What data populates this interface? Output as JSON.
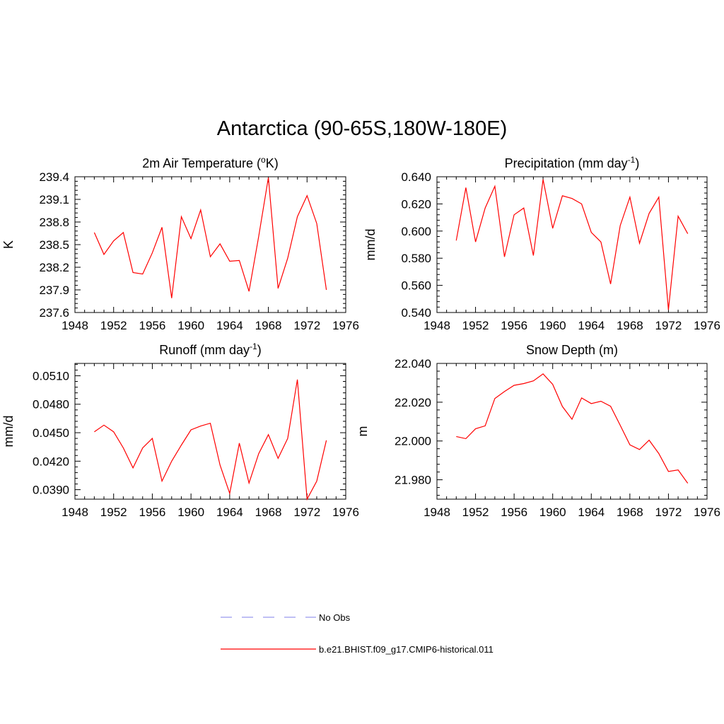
{
  "title": "Antarctica (90-65S,180W-180E)",
  "chart_data": [
    {
      "type": "line",
      "title": "2m Air Temperature (",
      "title_sup": "o",
      "title_end": "K)",
      "ylabel": "K",
      "xlim": [
        1948,
        1976
      ],
      "ylim": [
        237.6,
        239.4
      ],
      "yticks": [
        "237.6",
        "237.9",
        "238.2",
        "238.5",
        "238.8",
        "239.1",
        "239.4"
      ],
      "xticks": [
        "1948",
        "1952",
        "1956",
        "1960",
        "1964",
        "1968",
        "1972",
        "1976"
      ],
      "series": [
        {
          "name": "b.e21.BHIST.f09_g17.CMIP6-historical.011",
          "color": "#ff0000",
          "x": [
            1950,
            1951,
            1952,
            1953,
            1954,
            1955,
            1956,
            1957,
            1958,
            1959,
            1960,
            1961,
            1962,
            1963,
            1964,
            1965,
            1966,
            1967,
            1968,
            1969,
            1970,
            1971,
            1972,
            1973,
            1974
          ],
          "y": [
            238.66,
            238.37,
            238.55,
            238.66,
            238.13,
            238.11,
            238.39,
            238.73,
            237.79,
            238.87,
            238.58,
            238.96,
            238.34,
            238.51,
            238.28,
            238.29,
            237.88,
            238.61,
            239.39,
            237.92,
            238.32,
            238.87,
            239.15,
            238.78,
            237.9
          ]
        }
      ]
    },
    {
      "type": "line",
      "title": "Precipitation (mm day",
      "title_sup": "-1",
      "title_end": ")",
      "ylabel": "mm/d",
      "xlim": [
        1948,
        1976
      ],
      "ylim": [
        0.54,
        0.64
      ],
      "yticks": [
        "0.540",
        "0.560",
        "0.580",
        "0.600",
        "0.620",
        "0.640"
      ],
      "xticks": [
        "1948",
        "1952",
        "1956",
        "1960",
        "1964",
        "1968",
        "1972",
        "1976"
      ],
      "series": [
        {
          "name": "b.e21.BHIST.f09_g17.CMIP6-historical.011",
          "color": "#ff0000",
          "x": [
            1950,
            1951,
            1952,
            1953,
            1954,
            1955,
            1956,
            1957,
            1958,
            1959,
            1960,
            1961,
            1962,
            1963,
            1964,
            1965,
            1966,
            1967,
            1968,
            1969,
            1970,
            1971,
            1972,
            1973,
            1974
          ],
          "y": [
            0.593,
            0.632,
            0.592,
            0.617,
            0.633,
            0.581,
            0.612,
            0.617,
            0.582,
            0.638,
            0.602,
            0.626,
            0.624,
            0.62,
            0.599,
            0.592,
            0.561,
            0.604,
            0.625,
            0.591,
            0.613,
            0.625,
            0.542,
            0.611,
            0.598
          ]
        }
      ]
    },
    {
      "type": "line",
      "title": "Runoff (mm day",
      "title_sup": "-1",
      "title_end": ")",
      "ylabel": "mm/d",
      "xlim": [
        1948,
        1976
      ],
      "ylim": [
        0.038,
        0.0523
      ],
      "yticks": [
        "0.0390",
        "0.0420",
        "0.0450",
        "0.0480",
        "0.0510"
      ],
      "xticks": [
        "1948",
        "1952",
        "1956",
        "1960",
        "1964",
        "1968",
        "1972",
        "1976"
      ],
      "series": [
        {
          "name": "b.e21.BHIST.f09_g17.CMIP6-historical.011",
          "color": "#ff0000",
          "x": [
            1950,
            1951,
            1952,
            1953,
            1954,
            1955,
            1956,
            1957,
            1958,
            1959,
            1960,
            1961,
            1962,
            1963,
            1964,
            1965,
            1966,
            1967,
            1968,
            1969,
            1970,
            1971,
            1972,
            1973,
            1974
          ],
          "y": [
            0.0451,
            0.0458,
            0.0451,
            0.0434,
            0.0413,
            0.0434,
            0.0444,
            0.0399,
            0.042,
            0.0437,
            0.0453,
            0.0457,
            0.046,
            0.0416,
            0.0386,
            0.0439,
            0.0397,
            0.0428,
            0.0448,
            0.0423,
            0.0444,
            0.0506,
            0.038,
            0.0399,
            0.0442
          ]
        }
      ]
    },
    {
      "type": "line",
      "title": "Snow Depth (m)",
      "title_sup": "",
      "title_end": "",
      "ylabel": "m",
      "xlim": [
        1948,
        1976
      ],
      "ylim": [
        21.97,
        22.04
      ],
      "yticks": [
        "21.980",
        "22.000",
        "22.020",
        "22.040"
      ],
      "xticks": [
        "1948",
        "1952",
        "1956",
        "1960",
        "1964",
        "1968",
        "1972",
        "1976"
      ],
      "series": [
        {
          "name": "b.e21.BHIST.f09_g17.CMIP6-historical.011",
          "color": "#ff0000",
          "x": [
            1950,
            1951,
            1952,
            1953,
            1954,
            1955,
            1956,
            1957,
            1958,
            1959,
            1960,
            1961,
            1962,
            1963,
            1964,
            1965,
            1966,
            1967,
            1968,
            1969,
            1970,
            1971,
            1972,
            1973,
            1974
          ],
          "y": [
            22.0023,
            22.0012,
            22.0063,
            22.0078,
            22.0219,
            22.0255,
            22.0287,
            22.0296,
            22.031,
            22.0346,
            22.0292,
            22.0178,
            22.0112,
            22.0222,
            22.0193,
            22.0205,
            22.0179,
            22.0081,
            21.998,
            21.9956,
            22.0004,
            21.9935,
            21.9843,
            21.9851,
            21.9782
          ]
        }
      ]
    }
  ],
  "legend": {
    "entries": [
      {
        "label": "No Obs",
        "color": "#9999ee",
        "style": "dashed"
      },
      {
        "label": "b.e21.BHIST.f09_g17.CMIP6-historical.011",
        "color": "#ff0000",
        "style": "solid"
      }
    ]
  }
}
